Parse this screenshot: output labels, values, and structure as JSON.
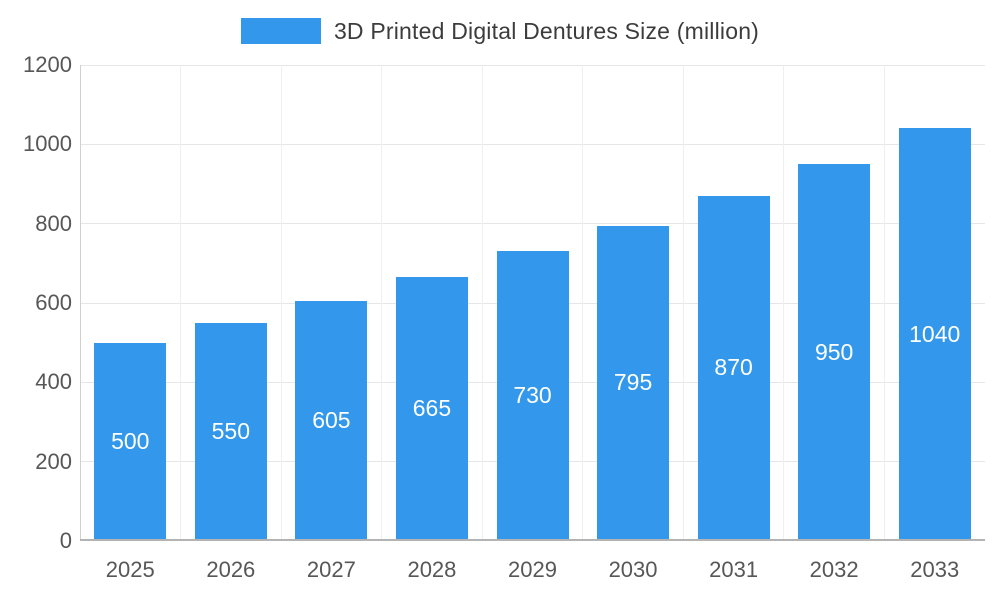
{
  "chart_data": {
    "type": "bar",
    "title": "3D Printed Digital Dentures Size (million)",
    "legend": [
      "3D Printed Digital Dentures Size (million)"
    ],
    "legend_position": "top-center",
    "categories": [
      "2025",
      "2026",
      "2027",
      "2028",
      "2029",
      "2030",
      "2031",
      "2032",
      "2033"
    ],
    "values": [
      500,
      550,
      605,
      665,
      730,
      795,
      870,
      950,
      1040
    ],
    "data_labels": [
      "500",
      "550",
      "605",
      "665",
      "730",
      "795",
      "870",
      "950",
      "1040"
    ],
    "xlabel": "",
    "ylabel": "",
    "ylim": [
      0,
      1200
    ],
    "yticks": [
      0,
      200,
      400,
      600,
      800,
      1000,
      1200
    ],
    "grid": "on",
    "bar_color": "#3398EC",
    "data_label_color": "#ffffff",
    "axis_text_color": "#575757"
  }
}
